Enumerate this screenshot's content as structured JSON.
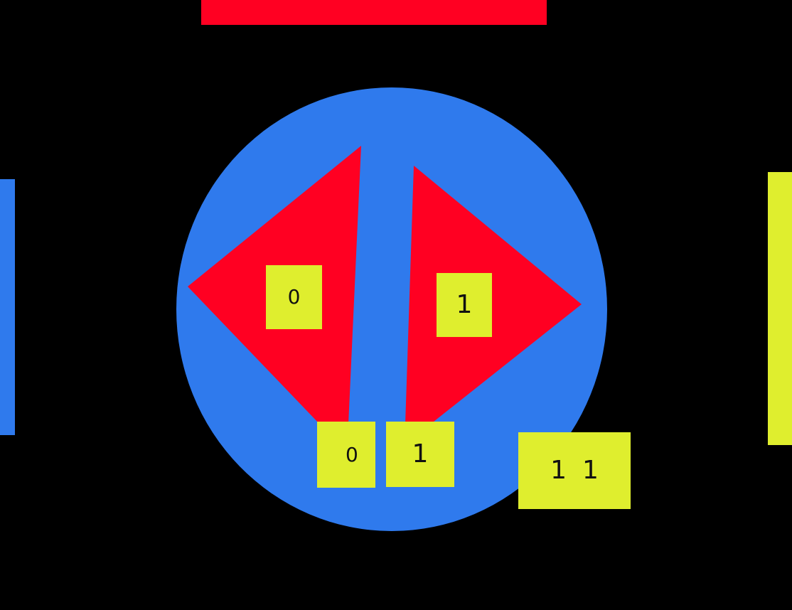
{
  "colors": {
    "background": "#000000",
    "red": "#ff0022",
    "blue": "#2f7aed",
    "yellow": "#dfee2e",
    "text": "#111111"
  },
  "tiles": {
    "left_shape_value": "0",
    "right_shape_value": "1",
    "bottom_left_value": "0",
    "bottom_right_value": "1",
    "score": {
      "digit_a": "1",
      "digit_b": "1"
    }
  }
}
